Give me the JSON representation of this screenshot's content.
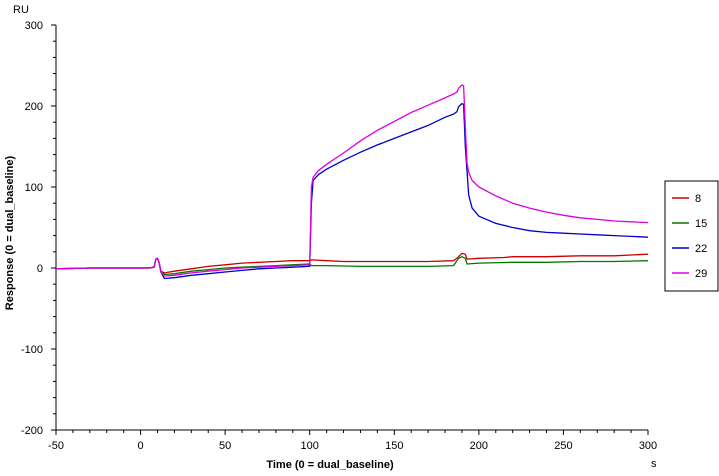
{
  "chart_data": {
    "type": "line",
    "title": "",
    "xlabel": "Time (0 = dual_baseline)",
    "ylabel": "Response (0 = dual_baseline)",
    "x_unit": "s",
    "y_unit": "RU",
    "xlim": [
      -50,
      300
    ],
    "ylim": [
      -200,
      300
    ],
    "x_ticks": [
      -50,
      0,
      50,
      100,
      150,
      200,
      250,
      300
    ],
    "y_ticks": [
      -200,
      -100,
      0,
      100,
      200,
      300
    ],
    "grid": false,
    "legend_position": "right",
    "series": [
      {
        "name": "8",
        "color": "#cc0000",
        "points": [
          [
            -50,
            -1
          ],
          [
            -30,
            0
          ],
          [
            -10,
            0
          ],
          [
            5,
            0
          ],
          [
            8,
            1
          ],
          [
            9,
            11
          ],
          [
            10,
            12
          ],
          [
            11,
            6
          ],
          [
            12,
            -4
          ],
          [
            14,
            -6
          ],
          [
            20,
            -4
          ],
          [
            30,
            -1
          ],
          [
            40,
            2
          ],
          [
            50,
            4
          ],
          [
            60,
            6
          ],
          [
            70,
            7
          ],
          [
            80,
            8
          ],
          [
            90,
            9
          ],
          [
            99,
            9
          ],
          [
            100,
            9
          ],
          [
            101,
            10
          ],
          [
            110,
            9
          ],
          [
            120,
            8
          ],
          [
            130,
            8
          ],
          [
            150,
            8
          ],
          [
            170,
            8
          ],
          [
            185,
            9
          ],
          [
            188,
            14
          ],
          [
            190,
            18
          ],
          [
            192,
            17
          ],
          [
            193,
            11
          ],
          [
            200,
            12
          ],
          [
            215,
            13
          ],
          [
            220,
            14
          ],
          [
            240,
            14
          ],
          [
            260,
            15
          ],
          [
            280,
            15
          ],
          [
            300,
            17
          ]
        ]
      },
      {
        "name": "15",
        "color": "#007700",
        "points": [
          [
            -50,
            -1
          ],
          [
            -30,
            0
          ],
          [
            -10,
            0
          ],
          [
            5,
            0
          ],
          [
            8,
            1
          ],
          [
            9,
            11
          ],
          [
            10,
            12
          ],
          [
            11,
            6
          ],
          [
            12,
            -4
          ],
          [
            14,
            -8
          ],
          [
            20,
            -7
          ],
          [
            30,
            -4
          ],
          [
            40,
            -2
          ],
          [
            50,
            0
          ],
          [
            60,
            1
          ],
          [
            70,
            2
          ],
          [
            80,
            3
          ],
          [
            90,
            4
          ],
          [
            99,
            5
          ],
          [
            100,
            5
          ],
          [
            101,
            3
          ],
          [
            110,
            3
          ],
          [
            130,
            2
          ],
          [
            150,
            2
          ],
          [
            170,
            2
          ],
          [
            185,
            3
          ],
          [
            188,
            12
          ],
          [
            190,
            14
          ],
          [
            192,
            12
          ],
          [
            193,
            5
          ],
          [
            200,
            6
          ],
          [
            220,
            7
          ],
          [
            240,
            7
          ],
          [
            260,
            8
          ],
          [
            280,
            8
          ],
          [
            300,
            9
          ]
        ]
      },
      {
        "name": "22",
        "color": "#0000cc",
        "points": [
          [
            -50,
            -1
          ],
          [
            -30,
            0
          ],
          [
            -10,
            0
          ],
          [
            5,
            0
          ],
          [
            8,
            1
          ],
          [
            9,
            11
          ],
          [
            10,
            12
          ],
          [
            11,
            6
          ],
          [
            12,
            -5
          ],
          [
            14,
            -13
          ],
          [
            20,
            -12
          ],
          [
            30,
            -9
          ],
          [
            40,
            -7
          ],
          [
            50,
            -5
          ],
          [
            60,
            -3
          ],
          [
            70,
            -1
          ],
          [
            80,
            0
          ],
          [
            90,
            1
          ],
          [
            99,
            2
          ],
          [
            100,
            2
          ],
          [
            101,
            80
          ],
          [
            102,
            108
          ],
          [
            105,
            115
          ],
          [
            110,
            122
          ],
          [
            120,
            133
          ],
          [
            130,
            143
          ],
          [
            140,
            152
          ],
          [
            150,
            160
          ],
          [
            160,
            168
          ],
          [
            170,
            176
          ],
          [
            180,
            186
          ],
          [
            185,
            190
          ],
          [
            187,
            193
          ],
          [
            188,
            199
          ],
          [
            190,
            203
          ],
          [
            191,
            202
          ],
          [
            192,
            150
          ],
          [
            193,
            120
          ],
          [
            194,
            90
          ],
          [
            196,
            74
          ],
          [
            200,
            64
          ],
          [
            210,
            55
          ],
          [
            220,
            50
          ],
          [
            230,
            46
          ],
          [
            240,
            44
          ],
          [
            250,
            43
          ],
          [
            260,
            42
          ],
          [
            270,
            41
          ],
          [
            280,
            40
          ],
          [
            290,
            39
          ],
          [
            300,
            38
          ]
        ]
      },
      {
        "name": "29",
        "color": "#dd00dd",
        "points": [
          [
            -50,
            -1
          ],
          [
            -30,
            0
          ],
          [
            -10,
            0
          ],
          [
            5,
            0
          ],
          [
            8,
            1
          ],
          [
            9,
            11
          ],
          [
            10,
            12
          ],
          [
            11,
            6
          ],
          [
            12,
            -5
          ],
          [
            14,
            -10
          ],
          [
            20,
            -9
          ],
          [
            30,
            -6
          ],
          [
            40,
            -4
          ],
          [
            50,
            -2
          ],
          [
            60,
            0
          ],
          [
            70,
            1
          ],
          [
            80,
            2
          ],
          [
            90,
            3
          ],
          [
            99,
            4
          ],
          [
            100,
            4
          ],
          [
            101,
            100
          ],
          [
            102,
            112
          ],
          [
            105,
            120
          ],
          [
            110,
            128
          ],
          [
            120,
            142
          ],
          [
            130,
            157
          ],
          [
            140,
            170
          ],
          [
            150,
            181
          ],
          [
            160,
            192
          ],
          [
            170,
            201
          ],
          [
            180,
            210
          ],
          [
            185,
            215
          ],
          [
            187,
            217
          ],
          [
            188,
            222
          ],
          [
            190,
            226
          ],
          [
            191,
            225
          ],
          [
            192,
            175
          ],
          [
            193,
            130
          ],
          [
            194,
            118
          ],
          [
            196,
            108
          ],
          [
            200,
            100
          ],
          [
            210,
            89
          ],
          [
            220,
            80
          ],
          [
            230,
            74
          ],
          [
            240,
            69
          ],
          [
            250,
            65
          ],
          [
            260,
            62
          ],
          [
            270,
            60
          ],
          [
            280,
            58
          ],
          [
            290,
            57
          ],
          [
            300,
            56
          ]
        ]
      }
    ]
  }
}
